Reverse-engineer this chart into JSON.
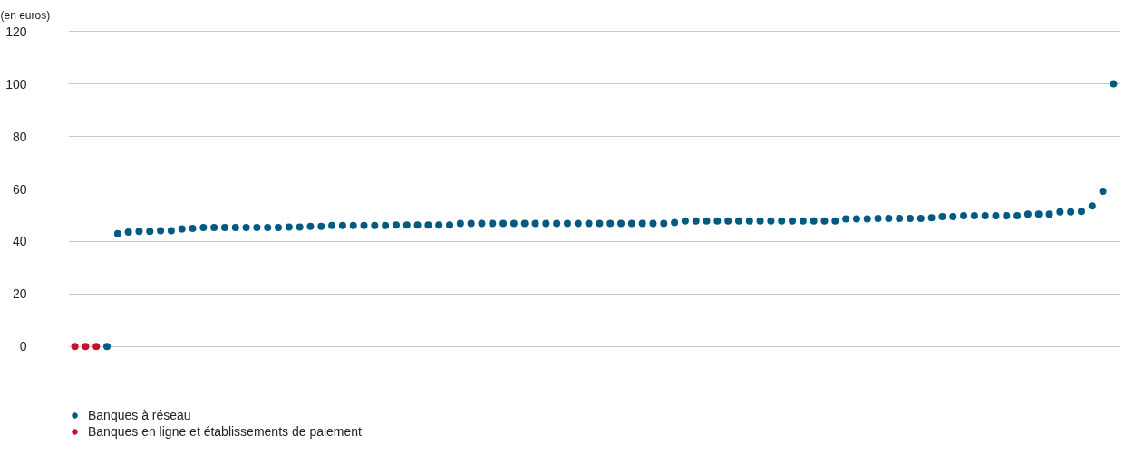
{
  "chart_data": {
    "type": "scatter",
    "ylabel": "(en euros)",
    "categories": [
      null,
      null,
      null,
      null,
      null,
      null,
      null,
      null,
      null,
      null,
      null,
      null,
      null,
      null,
      null,
      null,
      null,
      null,
      null,
      null,
      null,
      null,
      null,
      null,
      null,
      null,
      null,
      null,
      null,
      null,
      null,
      null,
      null,
      null,
      null,
      null,
      null,
      null,
      null,
      null,
      null,
      null,
      null,
      null,
      null,
      null,
      null,
      null,
      null,
      null,
      null,
      null,
      null,
      null,
      null,
      null,
      null,
      null,
      null,
      null,
      null,
      null,
      null,
      null,
      null,
      null,
      null,
      null,
      null,
      null,
      null,
      null,
      null,
      null,
      null,
      null,
      null,
      null,
      null,
      null,
      null,
      null,
      null,
      null,
      null,
      null,
      null,
      null,
      null,
      null,
      null,
      null,
      null,
      null,
      null,
      null,
      null,
      null
    ],
    "series": [
      {
        "name": "Banques à réseau",
        "color": "#005a82",
        "values": [
          null,
          null,
          null,
          0,
          43.0,
          43.6,
          43.9,
          43.9,
          44.1,
          44.1,
          44.8,
          45.0,
          45.3,
          45.3,
          45.3,
          45.3,
          45.3,
          45.3,
          45.3,
          45.3,
          45.5,
          45.5,
          45.8,
          45.8,
          46.1,
          46.1,
          46.1,
          46.1,
          46.1,
          46.1,
          46.3,
          46.3,
          46.3,
          46.3,
          46.3,
          46.3,
          46.9,
          46.9,
          46.9,
          46.9,
          46.9,
          46.9,
          46.9,
          46.9,
          46.9,
          46.9,
          46.9,
          46.9,
          46.9,
          46.9,
          46.9,
          46.9,
          46.9,
          46.9,
          46.9,
          46.9,
          47.2,
          47.8,
          47.8,
          47.8,
          47.8,
          47.8,
          47.8,
          47.8,
          47.8,
          47.8,
          47.8,
          47.8,
          47.8,
          47.8,
          47.8,
          47.8,
          48.6,
          48.6,
          48.6,
          48.8,
          48.8,
          48.8,
          48.8,
          48.8,
          49.0,
          49.5,
          49.5,
          49.8,
          49.8,
          49.8,
          49.8,
          49.8,
          49.8,
          50.4,
          50.4,
          50.4,
          51.3,
          51.3,
          51.5,
          53.5,
          59.1,
          100
        ]
      },
      {
        "name": "Banques en ligne et établissements de paiement",
        "color": "#c8102e",
        "values": [
          0,
          0,
          0,
          null,
          null,
          null,
          null,
          null,
          null,
          null,
          null,
          null,
          null,
          null,
          null,
          null,
          null,
          null,
          null,
          null,
          null,
          null,
          null,
          null,
          null,
          null,
          null,
          null,
          null,
          null,
          null,
          null,
          null,
          null,
          null,
          null,
          null,
          null,
          null,
          null,
          null,
          null,
          null,
          null,
          null,
          null,
          null,
          null,
          null,
          null,
          null,
          null,
          null,
          null,
          null,
          null,
          null,
          null,
          null,
          null,
          null,
          null,
          null,
          null,
          null,
          null,
          null,
          null,
          null,
          null,
          null,
          null,
          null,
          null,
          null,
          null,
          null,
          null,
          null,
          null,
          null,
          null,
          null,
          null,
          null,
          null,
          null,
          null,
          null,
          null,
          null,
          null,
          null,
          null,
          null,
          null,
          null,
          null
        ]
      }
    ],
    "ylim": [
      0,
      120
    ],
    "yticks": [
      0,
      20,
      40,
      60,
      80,
      100,
      120
    ],
    "grid": "y",
    "legend": "bottom left",
    "marker": "circle",
    "tick_labels": "y"
  }
}
